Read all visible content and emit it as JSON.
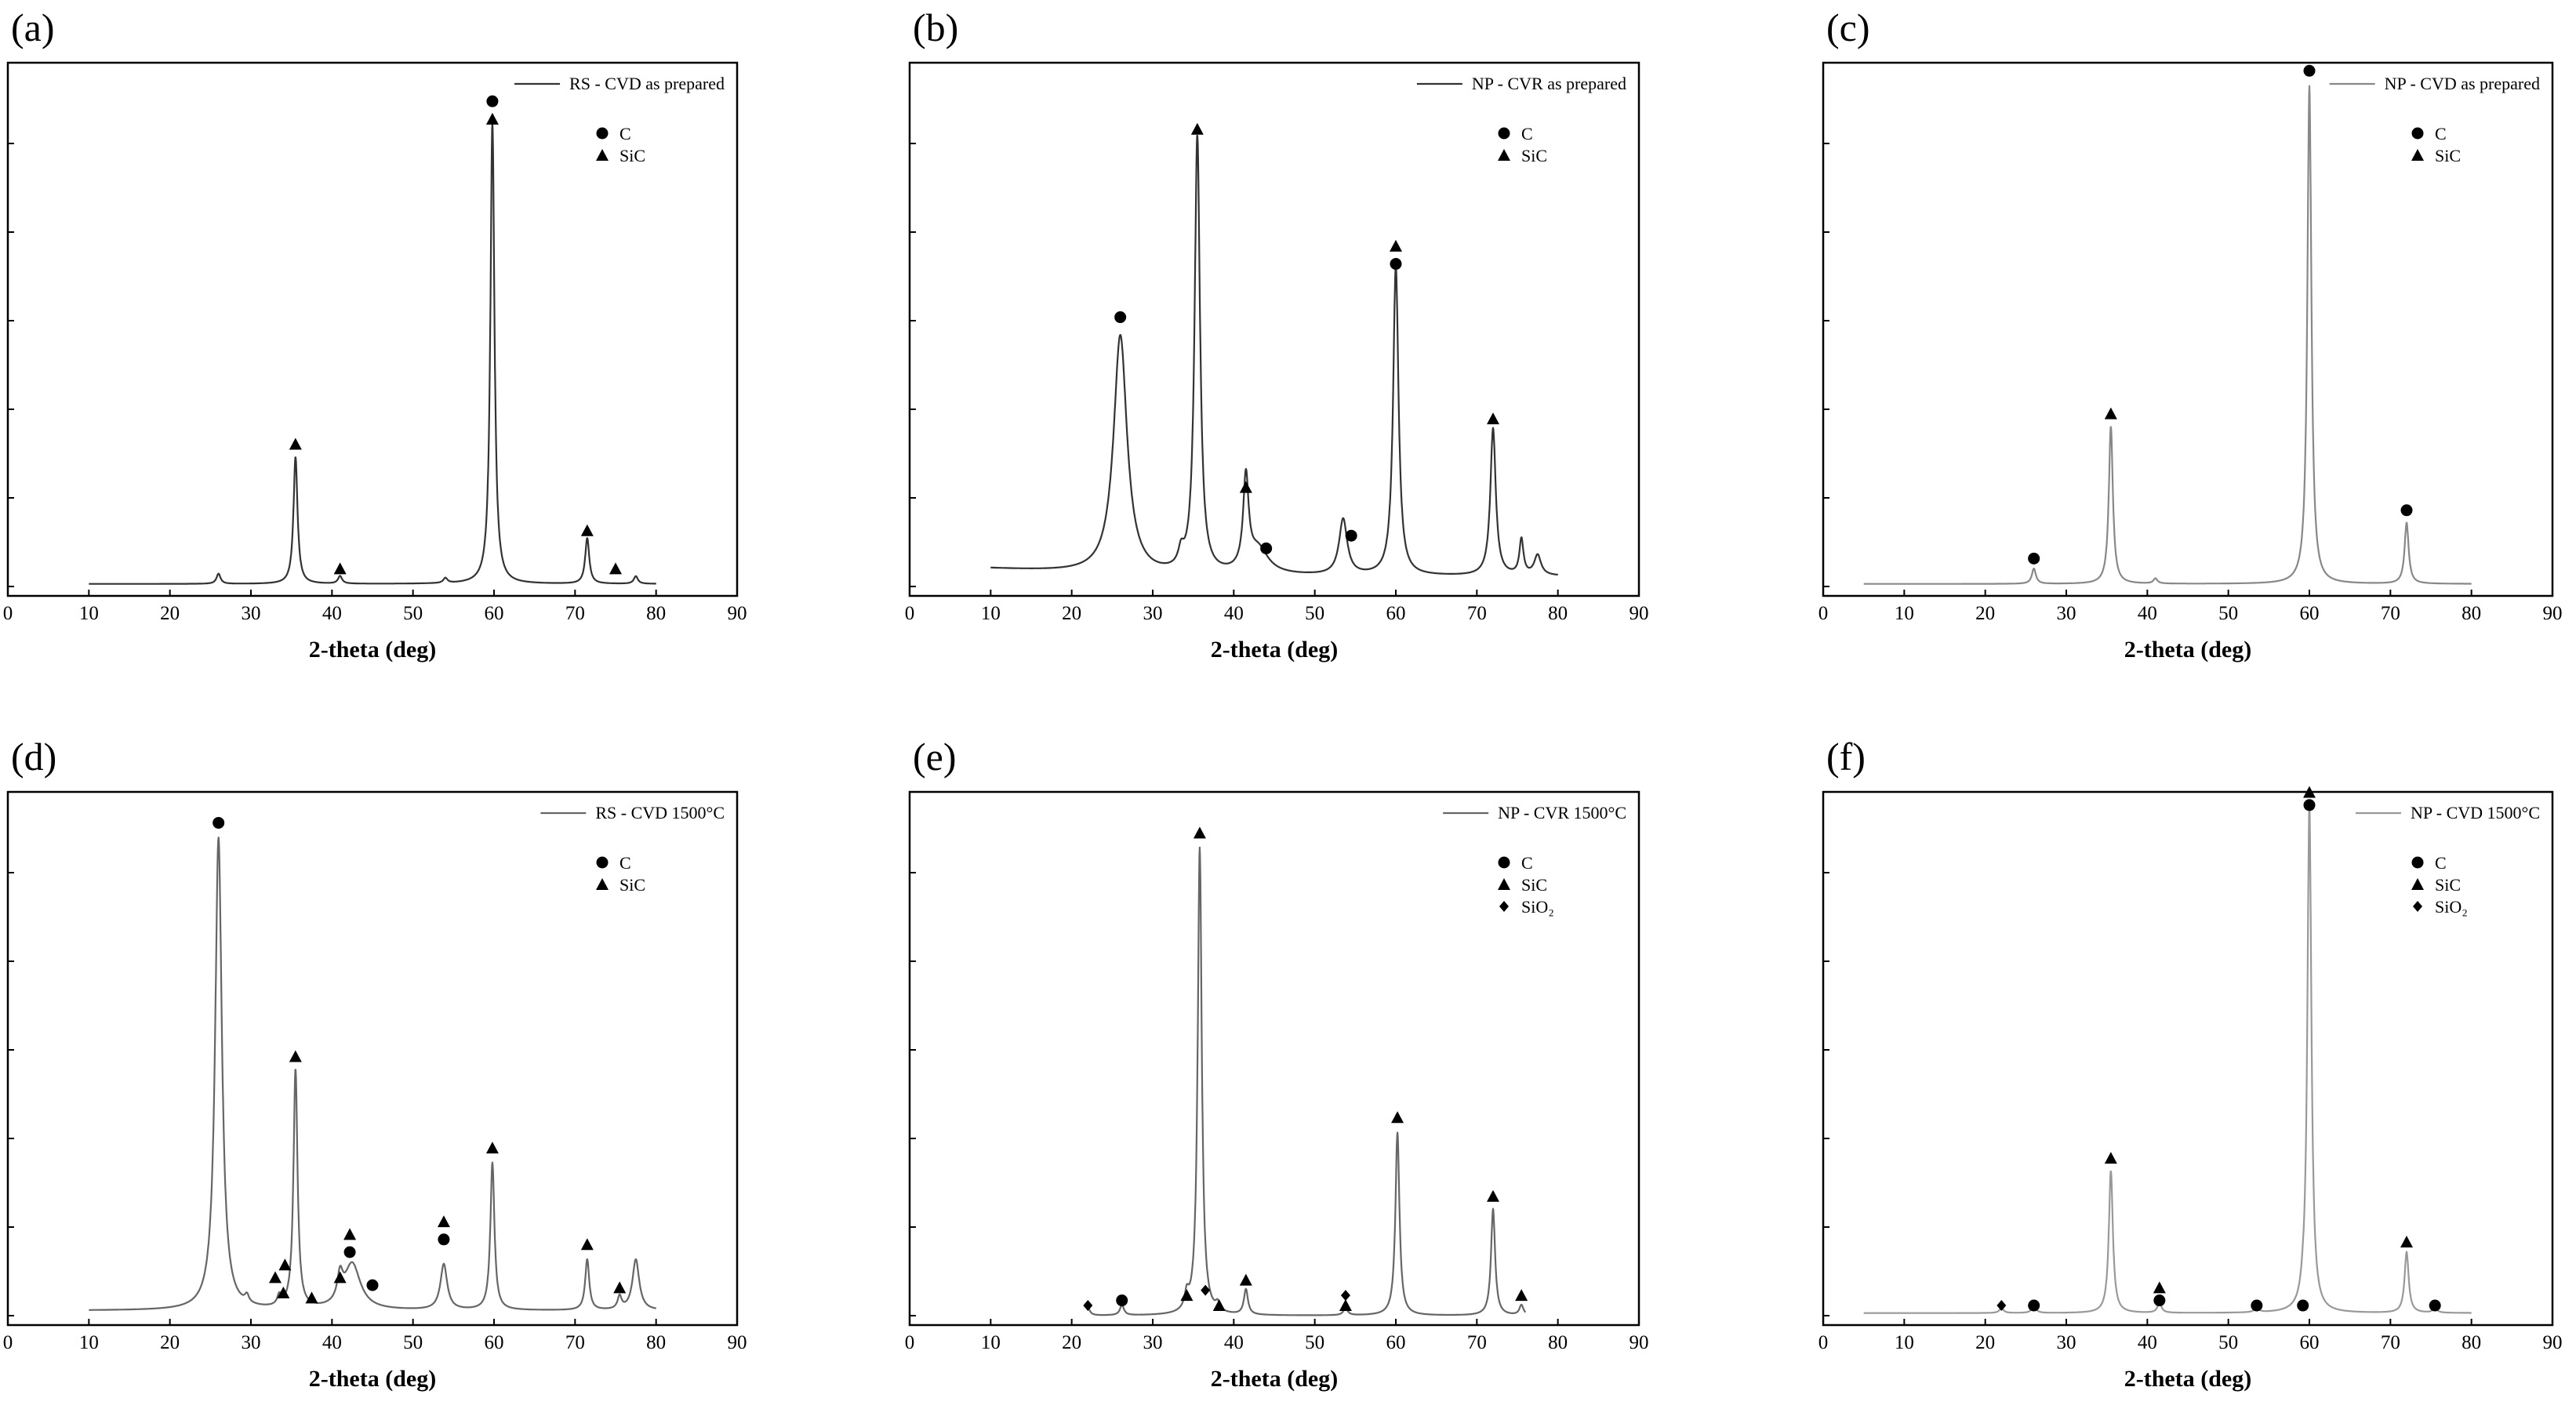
{
  "panels": [
    {
      "label": "(a)",
      "legend": "RS - CVD as prepared",
      "xlabel": "2-theta (deg)",
      "markers_legend": [
        {
          "symbol": "circle",
          "text": "C"
        },
        {
          "symbol": "triangle",
          "text": "SiC"
        }
      ]
    },
    {
      "label": "(b)",
      "legend": "NP - CVR as prepared",
      "xlabel": "2-theta (deg)",
      "markers_legend": [
        {
          "symbol": "circle",
          "text": "C"
        },
        {
          "symbol": "triangle",
          "text": "SiC"
        }
      ]
    },
    {
      "label": "(c)",
      "legend": "NP - CVD as prepared",
      "xlabel": "2-theta (deg)",
      "markers_legend": [
        {
          "symbol": "circle",
          "text": "C"
        },
        {
          "symbol": "triangle",
          "text": "SiC"
        }
      ]
    },
    {
      "label": "(d)",
      "legend": "RS - CVD 1500°C",
      "xlabel": "2-theta (deg)",
      "markers_legend": [
        {
          "symbol": "circle",
          "text": "C"
        },
        {
          "symbol": "triangle",
          "text": "SiC"
        }
      ]
    },
    {
      "label": "(e)",
      "legend": "NP - CVR 1500°C",
      "xlabel": "2-theta (deg)",
      "markers_legend": [
        {
          "symbol": "circle",
          "text": "C"
        },
        {
          "symbol": "triangle",
          "text": "SiC"
        },
        {
          "symbol": "diamond",
          "text": "SiO₂"
        }
      ]
    },
    {
      "label": "(f)",
      "legend": "NP - CVD 1500°C",
      "xlabel": "2-theta (deg)",
      "markers_legend": [
        {
          "symbol": "circle",
          "text": "C"
        },
        {
          "symbol": "triangle",
          "text": "SiC"
        },
        {
          "symbol": "diamond",
          "text": "SiO₂"
        }
      ]
    }
  ],
  "chart_data": [
    {
      "type": "line",
      "title": "(a)",
      "xlabel": "2-theta (deg)",
      "ylabel": "",
      "xlim": [
        0,
        90
      ],
      "ylim": [
        0,
        100
      ],
      "xticks": [
        0,
        10,
        20,
        30,
        40,
        50,
        60,
        70,
        80,
        90
      ],
      "series": [
        {
          "name": "RS - CVD as prepared",
          "color": "#333333",
          "x_range": [
            10,
            80
          ],
          "baseline": 0.5,
          "peaks": [
            [
              26,
              2,
              0.3
            ],
            [
              35.5,
              25,
              0.3
            ],
            [
              41,
              1.5,
              0.3
            ],
            [
              54,
              1,
              0.3
            ],
            [
              59.8,
              91,
              0.3
            ],
            [
              71.5,
              9,
              0.3
            ],
            [
              77.5,
              1.5,
              0.3
            ]
          ]
        }
      ],
      "annotations": [
        {
          "x": 35.5,
          "y": 28,
          "symbol": "triangle"
        },
        {
          "x": 41,
          "y": 3.5,
          "symbol": "triangle"
        },
        {
          "x": 59.8,
          "y": 95.5,
          "symbol": "circle"
        },
        {
          "x": 59.8,
          "y": 92,
          "symbol": "triangle"
        },
        {
          "x": 71.5,
          "y": 11,
          "symbol": "triangle"
        },
        {
          "x": 75,
          "y": 3.5,
          "symbol": "triangle"
        }
      ]
    },
    {
      "type": "line",
      "title": "(b)",
      "xlabel": "2-theta (deg)",
      "ylabel": "",
      "xlim": [
        0,
        90
      ],
      "ylim": [
        0,
        100
      ],
      "xticks": [
        0,
        10,
        20,
        30,
        40,
        50,
        60,
        70,
        80,
        90
      ],
      "series": [
        {
          "name": "NP - CVR as prepared",
          "color": "#333333",
          "x_range": [
            10,
            80
          ],
          "baseline": 2,
          "peaks": [
            [
              26,
              47,
              1.0
            ],
            [
              33.5,
              3,
              0.4
            ],
            [
              35.5,
              86,
              0.4
            ],
            [
              41.5,
              18,
              0.4
            ],
            [
              43,
              5,
              1.5
            ],
            [
              53.5,
              11,
              0.6
            ],
            [
              60,
              61,
              0.4
            ],
            [
              72,
              29,
              0.4
            ],
            [
              75.5,
              7,
              0.3
            ],
            [
              77.5,
              4,
              0.5
            ]
          ]
        }
      ],
      "annotations": [
        {
          "x": 26,
          "y": 53,
          "symbol": "circle"
        },
        {
          "x": 35.5,
          "y": 90,
          "symbol": "triangle"
        },
        {
          "x": 41.5,
          "y": 19.5,
          "symbol": "triangle"
        },
        {
          "x": 44,
          "y": 7.5,
          "symbol": "circle"
        },
        {
          "x": 54.5,
          "y": 10,
          "symbol": "circle"
        },
        {
          "x": 60,
          "y": 67,
          "symbol": "triangle"
        },
        {
          "x": 60,
          "y": 63.5,
          "symbol": "circle"
        },
        {
          "x": 72,
          "y": 33,
          "symbol": "triangle"
        }
      ]
    },
    {
      "type": "line",
      "title": "(c)",
      "xlabel": "2-theta (deg)",
      "ylabel": "",
      "xlim": [
        0,
        90
      ],
      "ylim": [
        0,
        100
      ],
      "xticks": [
        0,
        10,
        20,
        30,
        40,
        50,
        60,
        70,
        80,
        90
      ],
      "series": [
        {
          "name": "NP - CVD as prepared",
          "color": "#888888",
          "x_range": [
            5,
            80
          ],
          "baseline": 0.5,
          "peaks": [
            [
              26,
              3,
              0.3
            ],
            [
              35.5,
              31,
              0.3
            ],
            [
              41,
              1,
              0.3
            ],
            [
              60,
              98,
              0.3
            ],
            [
              72,
              12,
              0.3
            ]
          ]
        }
      ],
      "annotations": [
        {
          "x": 26,
          "y": 5.5,
          "symbol": "circle"
        },
        {
          "x": 35.5,
          "y": 34,
          "symbol": "triangle"
        },
        {
          "x": 60,
          "y": 101.5,
          "symbol": "circle"
        },
        {
          "x": 72,
          "y": 15,
          "symbol": "circle"
        }
      ]
    },
    {
      "type": "line",
      "title": "(d)",
      "xlabel": "2-theta (deg)",
      "ylabel": "",
      "xlim": [
        0,
        90
      ],
      "ylim": [
        0,
        100
      ],
      "xticks": [
        0,
        10,
        20,
        30,
        40,
        50,
        60,
        70,
        80,
        90
      ],
      "series": [
        {
          "name": "RS - CVD 1500°C",
          "color": "#666666",
          "x_range": [
            10,
            80
          ],
          "baseline": 1,
          "peaks": [
            [
              26,
              93,
              0.5
            ],
            [
              29.5,
              1.5,
              0.3
            ],
            [
              33.5,
              2,
              0.3
            ],
            [
              35.5,
              47,
              0.3
            ],
            [
              41,
              5,
              0.4
            ],
            [
              42.5,
              9,
              1.2
            ],
            [
              53.8,
              9,
              0.5
            ],
            [
              59.8,
              29,
              0.3
            ],
            [
              71.5,
              10,
              0.3
            ],
            [
              75.5,
              2.5,
              0.3
            ],
            [
              77.5,
              10,
              0.5
            ]
          ]
        }
      ],
      "annotations": [
        {
          "x": 26,
          "y": 97,
          "symbol": "circle"
        },
        {
          "x": 33,
          "y": 7.5,
          "symbol": "triangle"
        },
        {
          "x": 34.2,
          "y": 10,
          "symbol": "triangle"
        },
        {
          "x": 34,
          "y": 4.5,
          "symbol": "triangle"
        },
        {
          "x": 35.5,
          "y": 51,
          "symbol": "triangle"
        },
        {
          "x": 37.5,
          "y": 3.5,
          "symbol": "triangle"
        },
        {
          "x": 41,
          "y": 7.5,
          "symbol": "triangle"
        },
        {
          "x": 42.2,
          "y": 16,
          "symbol": "triangle"
        },
        {
          "x": 42.2,
          "y": 12.5,
          "symbol": "circle"
        },
        {
          "x": 45,
          "y": 6,
          "symbol": "circle"
        },
        {
          "x": 53.8,
          "y": 18.5,
          "symbol": "triangle"
        },
        {
          "x": 53.8,
          "y": 15,
          "symbol": "circle"
        },
        {
          "x": 59.8,
          "y": 33,
          "symbol": "triangle"
        },
        {
          "x": 71.5,
          "y": 14,
          "symbol": "triangle"
        },
        {
          "x": 75.5,
          "y": 5.5,
          "symbol": "triangle"
        }
      ]
    },
    {
      "type": "line",
      "title": "(e)",
      "xlabel": "2-theta (deg)",
      "ylabel": "",
      "xlim": [
        0,
        90
      ],
      "ylim": [
        0,
        100
      ],
      "xticks": [
        0,
        10,
        20,
        30,
        40,
        50,
        60,
        70,
        80,
        90
      ],
      "series": [
        {
          "name": "NP - CVR 1500°C",
          "color": "#666666",
          "x_range": [
            22,
            76
          ],
          "baseline": 0,
          "peaks": [
            [
              22,
              1.5,
              0.3
            ],
            [
              26.2,
              2,
              0.3
            ],
            [
              34.2,
              3,
              0.3
            ],
            [
              35.8,
              92,
              0.3
            ],
            [
              38,
              1.5,
              0.3
            ],
            [
              41.5,
              5,
              0.3
            ],
            [
              53.8,
              1.5,
              0.3
            ],
            [
              60.2,
              36,
              0.3
            ],
            [
              72,
              21,
              0.3
            ],
            [
              75.5,
              2,
              0.3
            ]
          ]
        }
      ],
      "annotations": [
        {
          "x": 22,
          "y": 2,
          "symbol": "diamond"
        },
        {
          "x": 26.2,
          "y": 3,
          "symbol": "circle"
        },
        {
          "x": 34.2,
          "y": 4,
          "symbol": "triangle"
        },
        {
          "x": 35.8,
          "y": 95,
          "symbol": "triangle"
        },
        {
          "x": 36.5,
          "y": 5,
          "symbol": "diamond"
        },
        {
          "x": 38.2,
          "y": 2,
          "symbol": "triangle"
        },
        {
          "x": 41.5,
          "y": 7,
          "symbol": "triangle"
        },
        {
          "x": 53.8,
          "y": 4,
          "symbol": "diamond"
        },
        {
          "x": 53.8,
          "y": 2,
          "symbol": "triangle"
        },
        {
          "x": 60.2,
          "y": 39,
          "symbol": "triangle"
        },
        {
          "x": 72,
          "y": 23.5,
          "symbol": "triangle"
        },
        {
          "x": 75.5,
          "y": 4,
          "symbol": "triangle"
        }
      ]
    },
    {
      "type": "line",
      "title": "(f)",
      "xlabel": "2-theta (deg)",
      "ylabel": "",
      "xlim": [
        0,
        90
      ],
      "ylim": [
        0,
        100
      ],
      "xticks": [
        0,
        10,
        20,
        30,
        40,
        50,
        60,
        70,
        80,
        90
      ],
      "series": [
        {
          "name": "NP - CVD 1500°C",
          "color": "#999999",
          "x_range": [
            5,
            80
          ],
          "baseline": 0.5,
          "peaks": [
            [
              22,
              1,
              0.3
            ],
            [
              26,
              1.5,
              0.3
            ],
            [
              35.5,
              28,
              0.3
            ],
            [
              41.5,
              2,
              0.3
            ],
            [
              53.5,
              1,
              0.3
            ],
            [
              59.2,
              1.5,
              0.3
            ],
            [
              60,
              100,
              0.3
            ],
            [
              72,
              12,
              0.3
            ],
            [
              75.5,
              1,
              0.3
            ]
          ]
        }
      ],
      "annotations": [
        {
          "x": 22,
          "y": 2,
          "symbol": "diamond"
        },
        {
          "x": 26,
          "y": 2,
          "symbol": "circle"
        },
        {
          "x": 35.5,
          "y": 31,
          "symbol": "triangle"
        },
        {
          "x": 41.5,
          "y": 5.5,
          "symbol": "triangle"
        },
        {
          "x": 41.5,
          "y": 3,
          "symbol": "circle"
        },
        {
          "x": 53.5,
          "y": 2,
          "symbol": "circle"
        },
        {
          "x": 59.2,
          "y": 2,
          "symbol": "circle"
        },
        {
          "x": 60,
          "y": 103,
          "symbol": "triangle"
        },
        {
          "x": 60,
          "y": 100.5,
          "symbol": "circle"
        },
        {
          "x": 72,
          "y": 14.5,
          "symbol": "triangle"
        },
        {
          "x": 75.5,
          "y": 2,
          "symbol": "circle"
        }
      ]
    }
  ]
}
